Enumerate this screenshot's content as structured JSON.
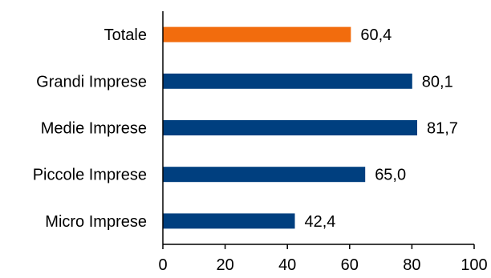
{
  "chart_data": {
    "type": "bar",
    "orientation": "horizontal",
    "categories": [
      "Totale",
      "Grandi Imprese",
      "Medie Imprese",
      "Piccole Imprese",
      "Micro Imprese"
    ],
    "values": [
      60.4,
      80.1,
      81.7,
      65.0,
      42.4
    ],
    "value_labels": [
      "60,4",
      "80,1",
      "81,7",
      "65,0",
      "42,4"
    ],
    "xlim": [
      0,
      100
    ],
    "xticks": [
      0,
      20,
      40,
      60,
      80,
      100
    ],
    "xtick_labels": [
      "0",
      "20",
      "40",
      "60",
      "80",
      "100"
    ],
    "bar_colors": [
      "#F26C0D",
      "#003F7F",
      "#003F7F",
      "#003F7F",
      "#003F7F"
    ],
    "grid": false,
    "legend": "none"
  }
}
